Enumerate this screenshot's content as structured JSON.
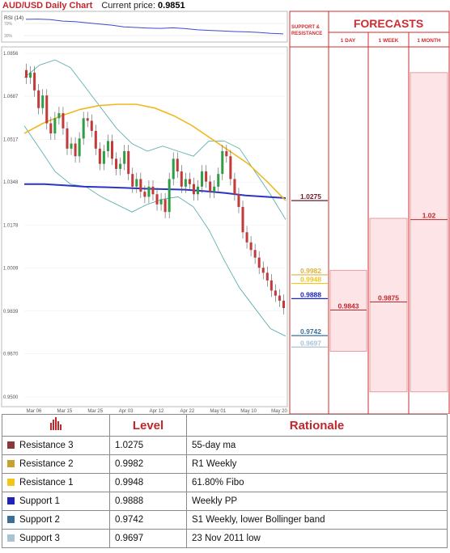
{
  "header": {
    "title": "AUD/USD Daily Chart",
    "price_label": "Current price:",
    "price_value": "0.9851"
  },
  "rsi": {
    "label": "RSI (14)",
    "tick_high": "70%",
    "tick_low": "30%"
  },
  "panel": {
    "sr_title": "SUPPORT & RESISTANCE",
    "forecast_title": "FORECASTS",
    "col_1day": "1 DAY",
    "col_1week": "1 WEEK",
    "col_1month": "1 MONTH",
    "val_1day": "0.9843",
    "val_1week": "0.9875",
    "val_1month": "1.02",
    "sr_levels": [
      {
        "value": "1.0275",
        "level": 1.0275,
        "color": "#6b1a2a",
        "text_color": "#6b1a2a"
      },
      {
        "value": "0.9982",
        "level": 0.9982,
        "color": "#d9b240",
        "text_color": "#d9b240"
      },
      {
        "value": "0.9948",
        "level": 0.9948,
        "color": "#f2c41c",
        "text_color": "#f2c41c"
      },
      {
        "value": "0.9888",
        "level": 0.9888,
        "color": "#1c24b8",
        "text_color": "#1c24b8"
      },
      {
        "value": "0.9742",
        "level": 0.9742,
        "color": "#3a6e96",
        "text_color": "#3a6e96"
      },
      {
        "value": "0.9697",
        "level": 0.9697,
        "color": "#a9c3d6",
        "text_color": "#a9c3d6"
      }
    ],
    "forecast_ranges": {
      "day": [
        0.968,
        1.0
      ],
      "week": [
        0.952,
        1.0205
      ],
      "month": [
        0.952,
        1.078
      ]
    }
  },
  "chart_data": {
    "type": "line",
    "y_ticks": [
      "1.0856",
      "1.0687",
      "1.0517",
      "1.0348",
      "1.0178",
      "1.0009",
      "0.9839",
      "0.9670",
      "0.9500"
    ],
    "ylim": [
      0.95,
      1.0856
    ],
    "x_ticks": [
      "Mar 06",
      "Mar 15",
      "Mar 25",
      "Apr 03",
      "Apr 12",
      "Apr 22",
      "May 01",
      "May 10",
      "May 20"
    ],
    "candles_close": [
      1.076,
      1.078,
      1.071,
      1.064,
      1.069,
      1.058,
      1.054,
      1.06,
      1.062,
      1.056,
      1.048,
      1.05,
      1.045,
      1.052,
      1.06,
      1.059,
      1.055,
      1.048,
      1.042,
      1.047,
      1.051,
      1.044,
      1.04,
      1.042,
      1.047,
      1.038,
      1.033,
      1.036,
      1.031,
      1.029,
      1.033,
      1.03,
      1.026,
      1.028,
      1.023,
      1.036,
      1.044,
      1.039,
      1.033,
      1.036,
      1.034,
      1.03,
      1.033,
      1.039,
      1.035,
      1.031,
      1.033,
      1.038,
      1.047,
      1.045,
      1.036,
      1.03,
      1.025,
      1.015,
      1.011,
      1.008,
      1.005,
      1.001,
      0.999,
      0.996,
      0.992,
      0.99,
      0.988,
      0.9851
    ],
    "ma55": [
      1.054,
      1.058,
      1.061,
      1.0635,
      1.065,
      1.0655,
      1.0655,
      1.064,
      1.061,
      1.057,
      1.052,
      1.047,
      1.042,
      1.035,
      1.0275
    ],
    "ma100": [
      1.034,
      1.034,
      1.0335,
      1.033,
      1.0328,
      1.0325,
      1.0322,
      1.032,
      1.0318,
      1.0312,
      1.0305,
      1.0295,
      1.029,
      1.0285
    ],
    "bb_upper": [
      1.076,
      1.081,
      1.083,
      1.08,
      1.072,
      1.064,
      1.056,
      1.05,
      1.047,
      1.049,
      1.047,
      1.045,
      1.051,
      1.051,
      1.048,
      1.039,
      1.03,
      1.02
    ],
    "bb_lower": [
      1.057,
      1.048,
      1.039,
      1.034,
      1.033,
      1.029,
      1.026,
      1.023,
      1.026,
      1.028,
      1.029,
      1.025,
      1.016,
      1.004,
      0.993,
      0.985,
      0.977,
      0.974
    ],
    "rsi_values": [
      78,
      79,
      77,
      72,
      70,
      66,
      62,
      58,
      52,
      50,
      48,
      47,
      49,
      46,
      42,
      40,
      38,
      36,
      35,
      33,
      30,
      28
    ]
  },
  "levels_table": {
    "col_level": "Level",
    "col_rationale": "Rationale",
    "rows": [
      {
        "name": "Resistance 3",
        "level": "1.0275",
        "rationale": "55-day ma",
        "color": "#8b3a3a"
      },
      {
        "name": "Resistance 2",
        "level": "0.9982",
        "rationale": "R1 Weekly",
        "color": "#c8a030"
      },
      {
        "name": "Resistance 1",
        "level": "0.9948",
        "rationale": "61.80% Fibo",
        "color": "#f2c41c"
      },
      {
        "name": "Support 1",
        "level": "0.9888",
        "rationale": "Weekly PP",
        "color": "#1c24b8"
      },
      {
        "name": "Support 2",
        "level": "0.9742",
        "rationale": "S1 Weekly, lower Bollinger band",
        "color": "#3a6e96"
      },
      {
        "name": "Support 3",
        "level": "0.9697",
        "rationale": "23 Nov 2011 low",
        "color": "#a9c3d6"
      }
    ]
  }
}
